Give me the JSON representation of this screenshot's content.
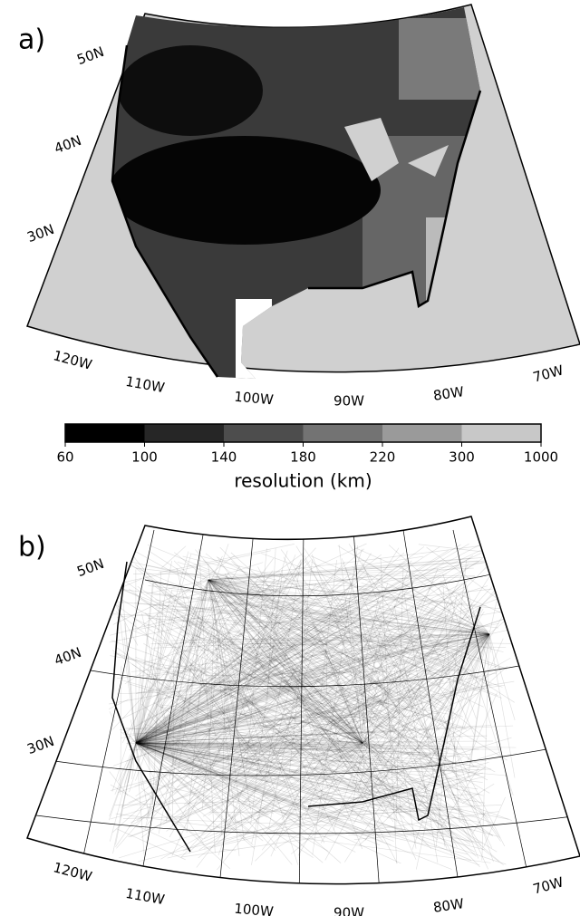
{
  "panels": [
    {
      "label": "a)"
    },
    {
      "label": "b)"
    }
  ],
  "latitude_labels": [
    "50N",
    "40N",
    "30N"
  ],
  "longitude_labels": [
    "120W",
    "110W",
    "100W",
    "90W",
    "80W",
    "70W"
  ],
  "colorbar": {
    "ticks": [
      60,
      100,
      140,
      180,
      220,
      300,
      1000
    ],
    "colors": [
      "#000000",
      "#262626",
      "#4d4d4d",
      "#737373",
      "#9a9a9a",
      "#c8c8c8"
    ],
    "label": "resolution (km)"
  }
}
